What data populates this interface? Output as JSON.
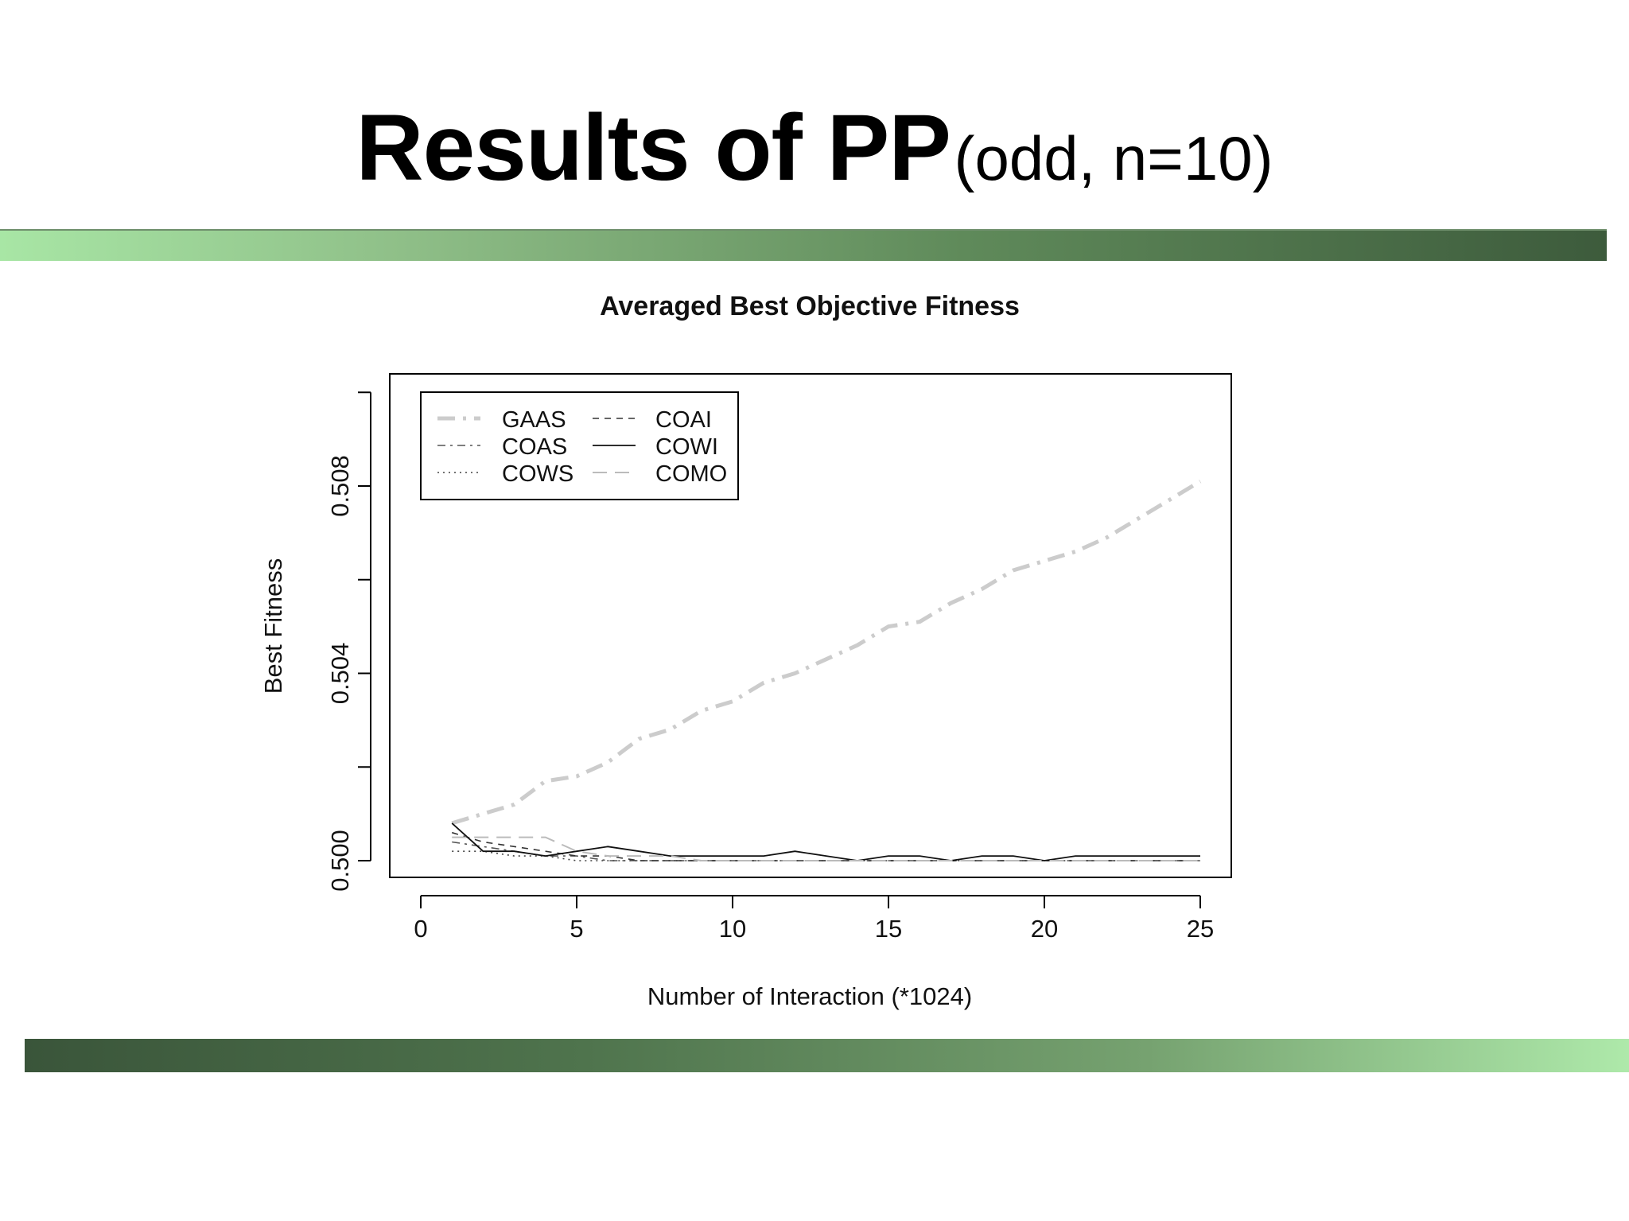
{
  "slide": {
    "title_main": "Results of PP",
    "title_sub": "(odd, n=10)"
  },
  "chart_data": {
    "type": "line",
    "title": "Averaged Best Objective Fitness",
    "xlabel": "Number of Interaction (*1024)",
    "ylabel": "Best Fitness",
    "xlim": [
      -1,
      26
    ],
    "ylim": [
      0.4996,
      0.51
    ],
    "xticks": [
      0,
      5,
      10,
      15,
      20,
      25
    ],
    "yticks": [
      0.5,
      0.502,
      0.504,
      0.506,
      0.508,
      0.51
    ],
    "ytick_labels": [
      "0.500",
      "",
      "0.504",
      "",
      "0.508",
      ""
    ],
    "legend_position": "top-left",
    "x": [
      1,
      2,
      3,
      4,
      5,
      6,
      7,
      8,
      9,
      10,
      11,
      12,
      13,
      14,
      15,
      16,
      17,
      18,
      19,
      20,
      21,
      22,
      23,
      24,
      25
    ],
    "series": [
      {
        "name": "GAAS",
        "color": "#cccccc",
        "dash": "longdash-dot-thick",
        "values": [
          0.5008,
          0.501,
          0.5012,
          0.5017,
          0.5018,
          0.5021,
          0.5026,
          0.5028,
          0.5032,
          0.5034,
          0.5038,
          0.504,
          0.5043,
          0.5046,
          0.505,
          0.5051,
          0.5055,
          0.5058,
          0.5062,
          0.5064,
          0.5066,
          0.5069,
          0.5073,
          0.5077,
          0.5081
        ]
      },
      {
        "name": "COAS",
        "color": "#555555",
        "dash": "dashdot",
        "values": [
          0.5004,
          0.5003,
          0.5002,
          0.5001,
          0.5001,
          0.5,
          0.5,
          0.5,
          0.5,
          0.5,
          0.5,
          0.5,
          0.5,
          0.5,
          0.5,
          0.5,
          0.5,
          0.5,
          0.5,
          0.5,
          0.5,
          0.5,
          0.5,
          0.5,
          0.5
        ]
      },
      {
        "name": "COWS",
        "color": "#444444",
        "dash": "dotted",
        "values": [
          0.5002,
          0.5002,
          0.5001,
          0.5001,
          0.5,
          0.5,
          0.5,
          0.5,
          0.5,
          0.5,
          0.5,
          0.5,
          0.5,
          0.5,
          0.5,
          0.5,
          0.5,
          0.5,
          0.5,
          0.5,
          0.5,
          0.5,
          0.5,
          0.5,
          0.5
        ]
      },
      {
        "name": "COAI",
        "color": "#333333",
        "dash": "dashed",
        "values": [
          0.5006,
          0.5004,
          0.5003,
          0.5002,
          0.5001,
          0.5001,
          0.5,
          0.5,
          0.5,
          0.5,
          0.5,
          0.5,
          0.5,
          0.5,
          0.5,
          0.5,
          0.5,
          0.5,
          0.5,
          0.5,
          0.5,
          0.5,
          0.5,
          0.5,
          0.5
        ]
      },
      {
        "name": "COWI",
        "color": "#111111",
        "dash": "solid",
        "values": [
          0.5008,
          0.5002,
          0.5002,
          0.5001,
          0.5002,
          0.5003,
          0.5002,
          0.5001,
          0.5001,
          0.5001,
          0.5001,
          0.5002,
          0.5001,
          0.5,
          0.5001,
          0.5001,
          0.5,
          0.5001,
          0.5001,
          0.5,
          0.5001,
          0.5001,
          0.5001,
          0.5001,
          0.5001
        ]
      },
      {
        "name": "COMO",
        "color": "#bbbbbb",
        "dash": "longdash",
        "values": [
          0.5005,
          0.5005,
          0.5005,
          0.5005,
          0.5002,
          0.5001,
          0.5001,
          0.5001,
          0.5,
          0.5,
          0.5,
          0.5,
          0.5,
          0.5,
          0.5,
          0.5,
          0.5,
          0.5,
          0.5,
          0.5,
          0.5,
          0.5,
          0.5,
          0.5,
          0.5
        ]
      }
    ]
  }
}
